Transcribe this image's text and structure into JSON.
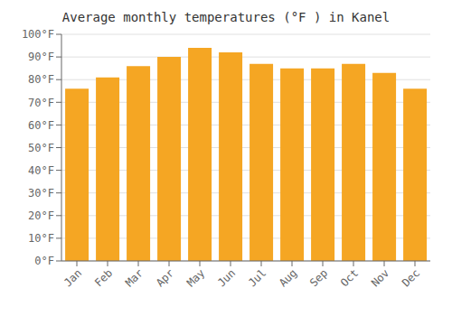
{
  "chart_data": {
    "type": "bar",
    "title": "Average monthly temperatures (°F ) in Kanel",
    "categories": [
      "Jan",
      "Feb",
      "Mar",
      "Apr",
      "May",
      "Jun",
      "Jul",
      "Aug",
      "Sep",
      "Oct",
      "Nov",
      "Dec"
    ],
    "values": [
      76,
      81,
      86,
      90,
      94,
      92,
      87,
      85,
      85,
      87,
      83,
      76
    ],
    "color": "#F5A623",
    "ylim": [
      0,
      100
    ],
    "yticks": [
      {
        "value": 0,
        "label": "0°F"
      },
      {
        "value": 10,
        "label": "10°F"
      },
      {
        "value": 20,
        "label": "20°F"
      },
      {
        "value": 30,
        "label": "30°F"
      },
      {
        "value": 40,
        "label": "40°F"
      },
      {
        "value": 50,
        "label": "50°F"
      },
      {
        "value": 60,
        "label": "60°F"
      },
      {
        "value": 70,
        "label": "70°F"
      },
      {
        "value": 80,
        "label": "80°F"
      },
      {
        "value": 90,
        "label": "90°F"
      },
      {
        "value": 100,
        "label": "100°F"
      }
    ],
    "grid": true
  }
}
